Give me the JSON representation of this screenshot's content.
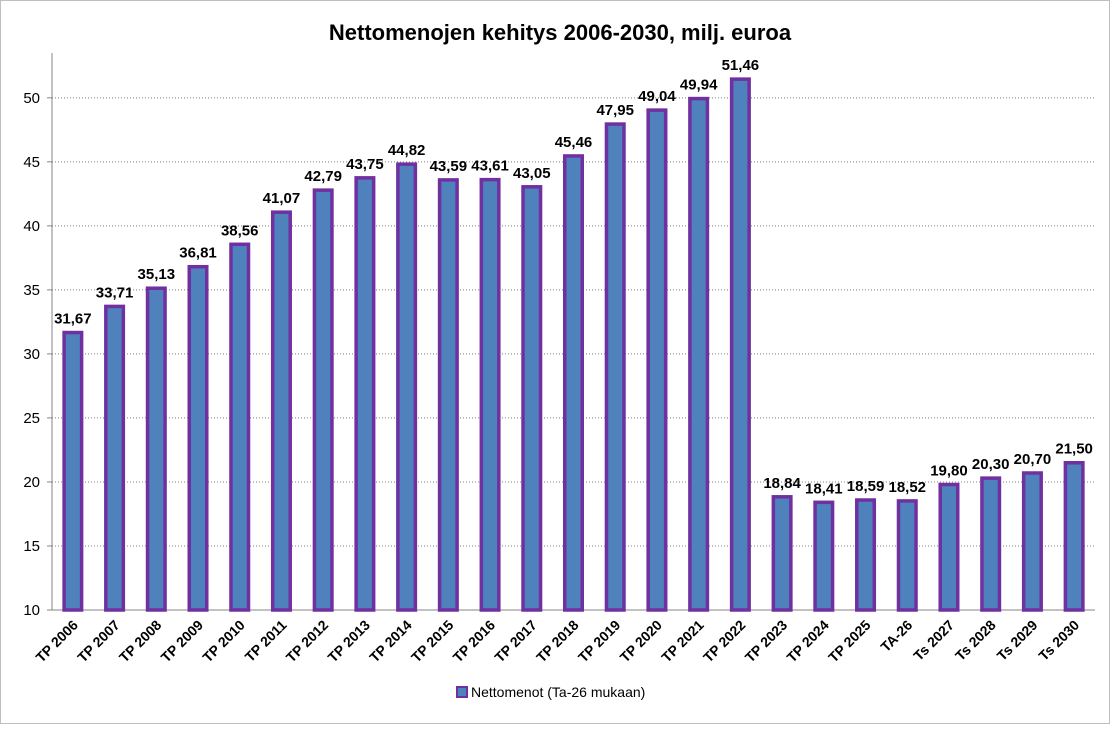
{
  "chart_data": {
    "type": "bar",
    "title": "Nettomenojen kehitys 2006-2030, milj. euroa",
    "categories": [
      "TP 2006",
      "TP 2007",
      "TP 2008",
      "TP 2009",
      "TP 2010",
      "TP 2011",
      "TP 2012",
      "TP 2013",
      "TP 2014",
      "TP 2015",
      "TP 2016",
      "TP 2017",
      "TP 2018",
      "TP 2019",
      "TP 2020",
      "TP 2021",
      "TP 2022",
      "TP 2023",
      "TP 2024",
      "TP 2025",
      "TA-26",
      "Ts 2027",
      "Ts 2028",
      "Ts 2029",
      "Ts 2030"
    ],
    "series": [
      {
        "name": "Nettomenot (Ta-26 mukaan)",
        "color": "#4f81bd",
        "edge_color": "#7030a0",
        "values": [
          31.67,
          33.71,
          35.13,
          36.81,
          38.56,
          41.07,
          42.79,
          43.75,
          44.82,
          43.59,
          43.61,
          43.05,
          45.46,
          47.95,
          49.04,
          49.94,
          51.46,
          18.84,
          18.41,
          18.59,
          18.52,
          19.8,
          20.3,
          20.7,
          21.5
        ],
        "value_labels": [
          "31,67",
          "33,71",
          "35,13",
          "36,81",
          "38,56",
          "41,07",
          "42,79",
          "43,75",
          "44,82",
          "43,59",
          "43,61",
          "43,05",
          "45,46",
          "47,95",
          "49,04",
          "49,94",
          "51,46",
          "18,84",
          "18,41",
          "18,59",
          "18,52",
          "19,80",
          "20,30",
          "20,70",
          "21,50"
        ]
      }
    ],
    "ylim": [
      10,
      53.5
    ],
    "yticks": [
      10,
      15,
      20,
      25,
      30,
      35,
      40,
      45,
      50
    ],
    "grid": true,
    "legend": "bottom"
  }
}
